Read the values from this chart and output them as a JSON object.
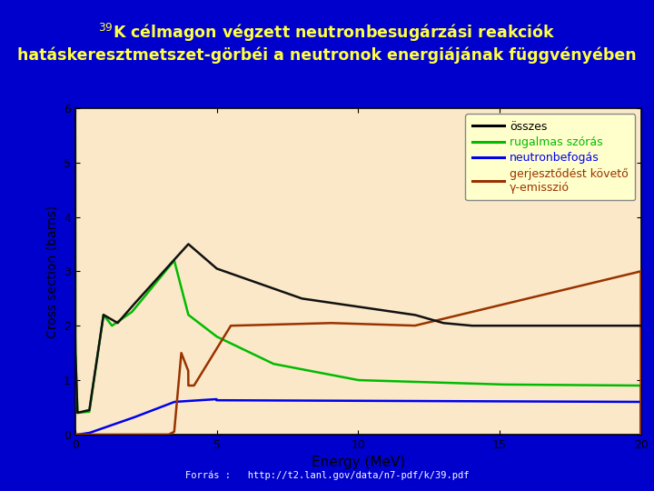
{
  "title_line1": "$^{39}$K célmagon végzett neutronbesugárzási reakciók",
  "title_line2": "hatáskeresztmetszet-görbéi a neutronok energiájának függvényében",
  "xlabel": "Energy (MeV)",
  "ylabel": "Cross section (barns)",
  "xlim": [
    0,
    20
  ],
  "ylim": [
    0,
    6
  ],
  "yticks": [
    0,
    1,
    2,
    3,
    4,
    5,
    6
  ],
  "xticks": [
    0,
    5,
    10,
    15,
    20
  ],
  "background_outer": "#0000CC",
  "background_plot": "#FAE8C8",
  "legend_bg": "#FFFFCC",
  "legend_labels": [
    "összes",
    "rugalmas szórás",
    "neutronbefogás",
    "gerjesztődést követő\nγ-emisszió"
  ],
  "legend_colors": [
    "#000000",
    "#00BB00",
    "#0000EE",
    "#993300"
  ],
  "footer": "Forrás :   http://t2.lanl.gov/data/n7-pdf/k/39.pdf",
  "title_color": "#FFFF44",
  "line_black_color": "#111111",
  "line_green_color": "#00BB00",
  "line_blue_color": "#0000EE",
  "line_red_color": "#993300"
}
